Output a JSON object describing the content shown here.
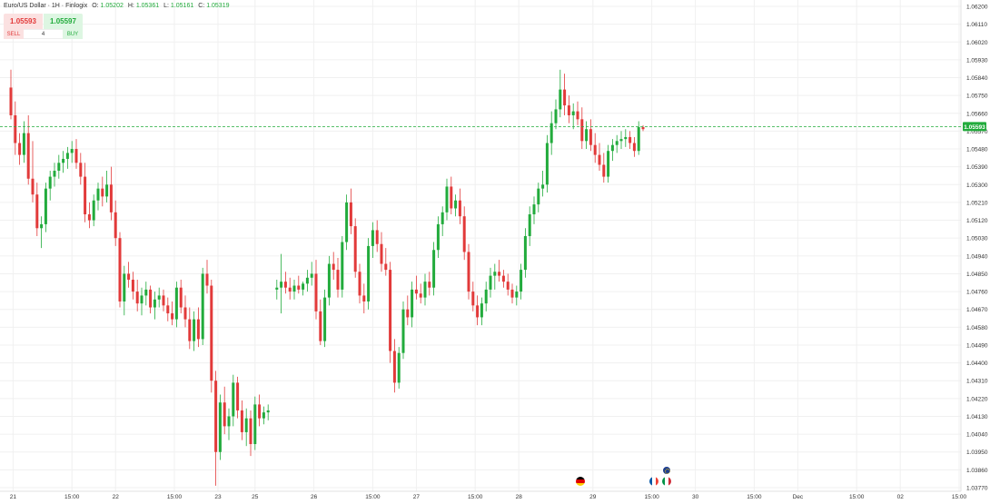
{
  "header": {
    "symbol": "Euro/US Dollar · 1H · Finlogix",
    "o_label": "O:",
    "o_value": "1.05202",
    "h_label": "H:",
    "h_value": "1.05361",
    "l_label": "L:",
    "l_value": "1.05161",
    "c_label": "C:",
    "c_value": "1.05319"
  },
  "trade": {
    "sell_price": "1.05593",
    "buy_price": "1.05597",
    "sell_label": "SELL",
    "buy_label": "BUY",
    "quantity": "4"
  },
  "colors": {
    "up": "#22ab3c",
    "down": "#e23a3a",
    "grid": "#f0f0f0",
    "price_line": "#22ab3c"
  },
  "events": [
    {
      "icon": "germany-flag-icon",
      "x": 55.3
    },
    {
      "icon": "france-flag-icon",
      "x": 60.65
    },
    {
      "icon": "italy-flag-icon",
      "x": 61.15
    },
    {
      "icon": "eu-flag-icon",
      "x": 60.9
    }
  ],
  "chart_data": {
    "type": "candlestick",
    "symbol": "EURUSD",
    "timeframe": "1H",
    "current_price": 1.05593,
    "ylim": [
      1.0377,
      1.062
    ],
    "y_ticks": [
      "1.06200",
      "1.06110",
      "1.06020",
      "1.05930",
      "1.05840",
      "1.05750",
      "1.05660",
      "1.05570",
      "1.05480",
      "1.05390",
      "1.05300",
      "1.05210",
      "1.05120",
      "1.05030",
      "1.04940",
      "1.04850",
      "1.04760",
      "1.04670",
      "1.04580",
      "1.04490",
      "1.04400",
      "1.04310",
      "1.04220",
      "1.04130",
      "1.04040",
      "1.03950",
      "1.03860",
      "1.03770"
    ],
    "x_ticks": [
      {
        "label": "21",
        "x": 1.2
      },
      {
        "label": "15:00",
        "x": 6.6
      },
      {
        "label": "22",
        "x": 10.6
      },
      {
        "label": "15:00",
        "x": 16.0
      },
      {
        "label": "23",
        "x": 20.0
      },
      {
        "label": "25",
        "x": 23.4
      },
      {
        "label": "26",
        "x": 28.8
      },
      {
        "label": "15:00",
        "x": 34.2
      },
      {
        "label": "27",
        "x": 38.2
      },
      {
        "label": "15:00",
        "x": 43.6
      },
      {
        "label": "28",
        "x": 47.6
      },
      {
        "label": "29",
        "x": 54.4
      },
      {
        "label": "15:00",
        "x": 59.8
      },
      {
        "label": "30",
        "x": 63.8
      },
      {
        "label": "15:00",
        "x": 69.2
      },
      {
        "label": "Dec",
        "x": 73.2
      },
      {
        "label": "15:00",
        "x": 78.6
      },
      {
        "label": "02",
        "x": 82.6
      },
      {
        "label": "15:00",
        "x": 88.0
      }
    ],
    "candles": [
      [
        1.0,
        1.0579,
        1.0588,
        1.0563,
        1.0565
      ],
      [
        1.4,
        1.0565,
        1.0572,
        1.0545,
        1.0551
      ],
      [
        1.8,
        1.0551,
        1.0556,
        1.054,
        1.0545
      ],
      [
        2.2,
        1.0545,
        1.0562,
        1.0541,
        1.0556
      ],
      [
        2.6,
        1.0556,
        1.0565,
        1.053,
        1.0533
      ],
      [
        3.0,
        1.0533,
        1.0552,
        1.0521,
        1.0525
      ],
      [
        3.4,
        1.0525,
        1.0531,
        1.0504,
        1.0508
      ],
      [
        3.8,
        1.0508,
        1.0514,
        1.0498,
        1.051
      ],
      [
        4.2,
        1.051,
        1.0531,
        1.0506,
        1.0528
      ],
      [
        4.6,
        1.0528,
        1.0537,
        1.0522,
        1.0534
      ],
      [
        5.0,
        1.0534,
        1.0541,
        1.0529,
        1.0537
      ],
      [
        5.4,
        1.0537,
        1.0545,
        1.0533,
        1.0541
      ],
      [
        5.8,
        1.0541,
        1.0547,
        1.0536,
        1.0543
      ],
      [
        6.2,
        1.0543,
        1.0549,
        1.0538,
        1.0546
      ],
      [
        6.6,
        1.0546,
        1.0552,
        1.0541,
        1.0548
      ],
      [
        7.0,
        1.0548,
        1.0553,
        1.0538,
        1.0541
      ],
      [
        7.4,
        1.0541,
        1.0546,
        1.053,
        1.0534
      ],
      [
        7.8,
        1.0534,
        1.0541,
        1.0511,
        1.0515
      ],
      [
        8.2,
        1.0515,
        1.0521,
        1.0508,
        1.0512
      ],
      [
        8.6,
        1.0512,
        1.0525,
        1.0509,
        1.0522
      ],
      [
        9.0,
        1.0522,
        1.0531,
        1.0517,
        1.0528
      ],
      [
        9.4,
        1.0528,
        1.0534,
        1.0519,
        1.0524
      ],
      [
        9.8,
        1.0524,
        1.0537,
        1.0521,
        1.053
      ],
      [
        10.2,
        1.053,
        1.0539,
        1.0512,
        1.0516
      ],
      [
        10.6,
        1.0516,
        1.0522,
        1.0499,
        1.0503
      ],
      [
        11.0,
        1.0503,
        1.0506,
        1.0468,
        1.0471
      ],
      [
        11.4,
        1.0471,
        1.0489,
        1.0464,
        1.0485
      ],
      [
        11.8,
        1.0485,
        1.0491,
        1.0478,
        1.0482
      ],
      [
        12.2,
        1.0482,
        1.0486,
        1.0472,
        1.0476
      ],
      [
        12.6,
        1.0476,
        1.0482,
        1.0466,
        1.047
      ],
      [
        13.0,
        1.047,
        1.0478,
        1.0464,
        1.0474
      ],
      [
        13.4,
        1.0474,
        1.0481,
        1.0469,
        1.0477
      ],
      [
        13.8,
        1.0477,
        1.0479,
        1.0465,
        1.0468
      ],
      [
        14.2,
        1.0468,
        1.0476,
        1.0462,
        1.0472
      ],
      [
        14.6,
        1.0472,
        1.0478,
        1.0468,
        1.0474
      ],
      [
        15.0,
        1.0474,
        1.0477,
        1.0466,
        1.0469
      ],
      [
        15.4,
        1.0469,
        1.0473,
        1.0461,
        1.0465
      ],
      [
        15.8,
        1.0465,
        1.0471,
        1.0459,
        1.0462
      ],
      [
        16.2,
        1.0462,
        1.0481,
        1.0458,
        1.0478
      ],
      [
        16.6,
        1.0478,
        1.0482,
        1.0465,
        1.0468
      ],
      [
        17.0,
        1.0468,
        1.0474,
        1.0458,
        1.0462
      ],
      [
        17.4,
        1.0462,
        1.0468,
        1.0447,
        1.0451
      ],
      [
        17.8,
        1.0451,
        1.0466,
        1.0446,
        1.0462
      ],
      [
        18.2,
        1.0462,
        1.0468,
        1.0448,
        1.0452
      ],
      [
        18.6,
        1.0452,
        1.0488,
        1.0449,
        1.0485
      ],
      [
        19.0,
        1.0485,
        1.0492,
        1.0475,
        1.0479
      ],
      [
        19.4,
        1.0479,
        1.0482,
        1.0425,
        1.0431
      ],
      [
        19.8,
        1.0431,
        1.0436,
        1.0378,
        1.0395
      ],
      [
        20.2,
        1.0395,
        1.0424,
        1.0391,
        1.042
      ],
      [
        20.6,
        1.042,
        1.0428,
        1.0404,
        1.0408
      ],
      [
        21.0,
        1.0408,
        1.0417,
        1.0401,
        1.0413
      ],
      [
        21.4,
        1.0413,
        1.0434,
        1.0408,
        1.043
      ],
      [
        21.8,
        1.043,
        1.0433,
        1.0412,
        1.0416
      ],
      [
        22.2,
        1.0416,
        1.0421,
        1.0401,
        1.0405
      ],
      [
        22.6,
        1.0405,
        1.0417,
        1.0398,
        1.0412
      ],
      [
        23.0,
        1.0412,
        1.0416,
        1.0393,
        1.0399
      ],
      [
        23.4,
        1.0399,
        1.0423,
        1.0396,
        1.0419
      ],
      [
        23.8,
        1.0419,
        1.0424,
        1.0408,
        1.0412
      ],
      [
        24.2,
        1.0412,
        1.0418,
        1.0409,
        1.0415
      ],
      [
        24.6,
        1.0415,
        1.0419,
        1.0411,
        1.0416
      ],
      [
        25.4,
        1.0477,
        1.0482,
        1.0472,
        1.0478
      ],
      [
        25.8,
        1.0478,
        1.0495,
        1.0465,
        1.0481
      ],
      [
        26.2,
        1.0481,
        1.0486,
        1.0475,
        1.0478
      ],
      [
        26.6,
        1.0478,
        1.0483,
        1.0472,
        1.0476
      ],
      [
        27.0,
        1.0476,
        1.0482,
        1.0472,
        1.0479
      ],
      [
        27.4,
        1.0479,
        1.0484,
        1.0475,
        1.0477
      ],
      [
        27.8,
        1.0477,
        1.0481,
        1.0474,
        1.048
      ],
      [
        28.2,
        1.048,
        1.0487,
        1.0476,
        1.0483
      ],
      [
        28.6,
        1.0483,
        1.0491,
        1.0479,
        1.0485
      ],
      [
        29.0,
        1.0485,
        1.0492,
        1.0462,
        1.0466
      ],
      [
        29.4,
        1.0466,
        1.0472,
        1.0449,
        1.0451
      ],
      [
        29.8,
        1.0451,
        1.0477,
        1.0448,
        1.0473
      ],
      [
        30.2,
        1.0473,
        1.0494,
        1.0469,
        1.049
      ],
      [
        30.6,
        1.049,
        1.0496,
        1.0482,
        1.0487
      ],
      [
        31.0,
        1.0487,
        1.0493,
        1.0473,
        1.0477
      ],
      [
        31.4,
        1.0477,
        1.0504,
        1.0473,
        1.0501
      ],
      [
        31.8,
        1.0501,
        1.0525,
        1.0497,
        1.0521
      ],
      [
        32.2,
        1.0521,
        1.0528,
        1.0505,
        1.0509
      ],
      [
        32.6,
        1.0509,
        1.0513,
        1.0483,
        1.0486
      ],
      [
        33.0,
        1.0486,
        1.049,
        1.047,
        1.0474
      ],
      [
        33.4,
        1.0474,
        1.048,
        1.0465,
        1.0471
      ],
      [
        33.8,
        1.0471,
        1.0503,
        1.0467,
        1.0499
      ],
      [
        34.2,
        1.0499,
        1.0511,
        1.0493,
        1.0507
      ],
      [
        34.6,
        1.0507,
        1.0512,
        1.0496,
        1.05
      ],
      [
        35.0,
        1.05,
        1.0506,
        1.0486,
        1.049
      ],
      [
        35.4,
        1.049,
        1.0498,
        1.0484,
        1.0487
      ],
      [
        35.8,
        1.0487,
        1.0491,
        1.044,
        1.0446
      ],
      [
        36.2,
        1.0446,
        1.0452,
        1.0425,
        1.043
      ],
      [
        36.6,
        1.043,
        1.0448,
        1.0427,
        1.0445
      ],
      [
        37.0,
        1.0445,
        1.0471,
        1.0442,
        1.0467
      ],
      [
        37.4,
        1.0467,
        1.0474,
        1.0459,
        1.0463
      ],
      [
        37.8,
        1.0463,
        1.0481,
        1.0458,
        1.0477
      ],
      [
        38.2,
        1.0477,
        1.0484,
        1.0472,
        1.0475
      ],
      [
        38.6,
        1.0475,
        1.048,
        1.047,
        1.0473
      ],
      [
        39.0,
        1.0473,
        1.0485,
        1.0469,
        1.0481
      ],
      [
        39.4,
        1.0481,
        1.0486,
        1.0474,
        1.0478
      ],
      [
        39.8,
        1.0478,
        1.0501,
        1.0474,
        1.0497
      ],
      [
        40.2,
        1.0497,
        1.0514,
        1.0493,
        1.051
      ],
      [
        40.6,
        1.051,
        1.0519,
        1.0504,
        1.0516
      ],
      [
        41.0,
        1.0516,
        1.0533,
        1.0512,
        1.0529
      ],
      [
        41.4,
        1.0529,
        1.0534,
        1.0515,
        1.0518
      ],
      [
        41.8,
        1.0518,
        1.0525,
        1.0514,
        1.0522
      ],
      [
        42.2,
        1.0522,
        1.0528,
        1.051,
        1.0514
      ],
      [
        42.6,
        1.0514,
        1.0519,
        1.0492,
        1.0496
      ],
      [
        43.0,
        1.0496,
        1.05,
        1.0472,
        1.0476
      ],
      [
        43.4,
        1.0476,
        1.0481,
        1.0466,
        1.0469
      ],
      [
        43.8,
        1.0469,
        1.0474,
        1.0459,
        1.0463
      ],
      [
        44.2,
        1.0463,
        1.0473,
        1.0459,
        1.047
      ],
      [
        44.6,
        1.047,
        1.0481,
        1.0466,
        1.0477
      ],
      [
        45.0,
        1.0477,
        1.0488,
        1.0473,
        1.0484
      ],
      [
        45.4,
        1.0484,
        1.049,
        1.0477,
        1.0486
      ],
      [
        45.8,
        1.0486,
        1.0492,
        1.0481,
        1.0484
      ],
      [
        46.2,
        1.0484,
        1.0487,
        1.0478,
        1.0481
      ],
      [
        46.6,
        1.0481,
        1.0485,
        1.0474,
        1.0477
      ],
      [
        47.0,
        1.0477,
        1.048,
        1.047,
        1.0473
      ],
      [
        47.4,
        1.0473,
        1.0479,
        1.0469,
        1.0476
      ],
      [
        47.8,
        1.0476,
        1.049,
        1.0472,
        1.0487
      ],
      [
        48.2,
        1.0487,
        1.0508,
        1.0483,
        1.0504
      ],
      [
        48.6,
        1.0504,
        1.0519,
        1.0499,
        1.0515
      ],
      [
        49.0,
        1.0515,
        1.0524,
        1.051,
        1.052
      ],
      [
        49.4,
        1.052,
        1.0531,
        1.0516,
        1.0528
      ],
      [
        49.8,
        1.0528,
        1.0537,
        1.0524,
        1.053
      ],
      [
        50.2,
        1.053,
        1.0555,
        1.0526,
        1.0551
      ],
      [
        50.6,
        1.0551,
        1.0567,
        1.0545,
        1.0561
      ],
      [
        51.0,
        1.0561,
        1.0573,
        1.0558,
        1.0568
      ],
      [
        51.4,
        1.0568,
        1.0588,
        1.0564,
        1.0578
      ],
      [
        51.8,
        1.0578,
        1.0586,
        1.0565,
        1.057
      ],
      [
        52.2,
        1.057,
        1.0575,
        1.0561,
        1.0565
      ],
      [
        52.6,
        1.0565,
        1.0571,
        1.0558,
        1.0567
      ],
      [
        53.0,
        1.0567,
        1.0572,
        1.056,
        1.0563
      ],
      [
        53.4,
        1.0563,
        1.0569,
        1.0548,
        1.0552
      ],
      [
        53.8,
        1.0552,
        1.0562,
        1.0548,
        1.0558
      ],
      [
        54.2,
        1.0558,
        1.0563,
        1.0547,
        1.055
      ],
      [
        54.6,
        1.055,
        1.0556,
        1.0541,
        1.0545
      ],
      [
        55.0,
        1.0545,
        1.0551,
        1.0537,
        1.054
      ],
      [
        55.4,
        1.054,
        1.0546,
        1.0531,
        1.0534
      ],
      [
        55.8,
        1.0534,
        1.055,
        1.0531,
        1.0547
      ],
      [
        56.2,
        1.0547,
        1.0553,
        1.0542,
        1.055
      ],
      [
        56.6,
        1.055,
        1.0555,
        1.0546,
        1.0552
      ],
      [
        57.0,
        1.0552,
        1.0557,
        1.0548,
        1.0553
      ],
      [
        57.4,
        1.0553,
        1.0558,
        1.0549,
        1.0554
      ],
      [
        57.8,
        1.0554,
        1.0557,
        1.0548,
        1.0551
      ],
      [
        58.2,
        1.0551,
        1.0554,
        1.0544,
        1.0547
      ],
      [
        58.6,
        1.0547,
        1.0562,
        1.0545,
        1.0559
      ],
      [
        59.0,
        1.0559,
        1.056,
        1.0557,
        1.0558
      ]
    ]
  }
}
